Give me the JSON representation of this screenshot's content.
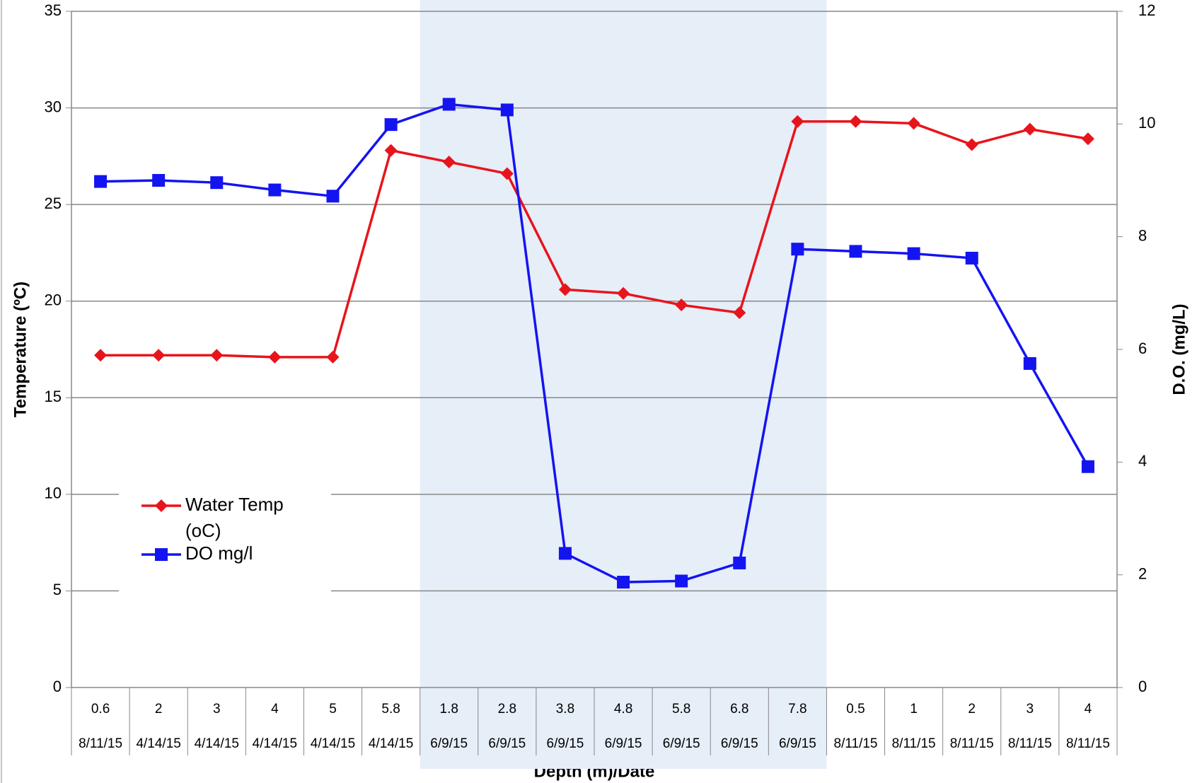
{
  "chart_data": {
    "type": "line",
    "x_label": "Depth (m)/Date",
    "y_label": "Temperature (ºC)",
    "y2_label": "D.O. (mg/L)",
    "categories": [
      "0.6",
      "2",
      "3",
      "4",
      "5",
      "5.8",
      "1.8",
      "2.8",
      "3.8",
      "4.8",
      "5.8",
      "6.8",
      "7.8",
      "0.5",
      "1",
      "2",
      "3",
      "4"
    ],
    "category_dates": [
      "8/11/15",
      "4/14/15",
      "4/14/15",
      "4/14/15",
      "4/14/15",
      "4/14/15",
      "6/9/15",
      "6/9/15",
      "6/9/15",
      "6/9/15",
      "6/9/15",
      "6/9/15",
      "6/9/15",
      "8/11/15",
      "8/11/15",
      "8/11/15",
      "8/11/15",
      "8/11/15"
    ],
    "series": [
      {
        "name": "Water Temp (oC)",
        "color": "#e8141c",
        "marker": "diamond",
        "axis": "y",
        "values": [
          17.2,
          17.2,
          17.2,
          17.1,
          17.1,
          27.8,
          27.2,
          26.6,
          20.6,
          20.4,
          19.8,
          19.4,
          29.3,
          29.3,
          29.2,
          28.1,
          28.9,
          28.4
        ]
      },
      {
        "name": "DO mg/l",
        "color": "#1414f0",
        "marker": "square",
        "axis": "y2",
        "values": [
          8.98,
          9.0,
          8.96,
          8.83,
          8.72,
          9.99,
          10.35,
          10.25,
          2.38,
          1.87,
          1.89,
          2.21,
          7.78,
          7.74,
          7.7,
          7.62,
          5.75,
          3.92
        ]
      }
    ],
    "ylim": [
      0,
      35
    ],
    "yticks": [
      0,
      5,
      10,
      15,
      20,
      25,
      30,
      35
    ],
    "y2lim": [
      0,
      12
    ],
    "y2ticks": [
      0,
      2,
      4,
      6,
      8,
      10,
      12
    ],
    "grid": true,
    "legend": "left"
  }
}
